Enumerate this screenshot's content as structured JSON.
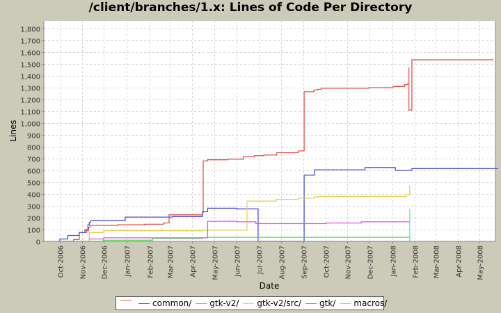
{
  "chart_data": {
    "type": "line",
    "title": "/client/branches/1.x: Lines of Code Per Directory",
    "xlabel": "Date",
    "ylabel": "Lines",
    "ylim": [
      0,
      1850
    ],
    "y_ticks": [
      0,
      100,
      200,
      300,
      400,
      500,
      600,
      700,
      800,
      900,
      1000,
      1100,
      1200,
      1300,
      1400,
      1500,
      1600,
      1700,
      1800
    ],
    "y_tick_labels": [
      "0",
      "100",
      "200",
      "300",
      "400",
      "500",
      "600",
      "700",
      "800",
      "900",
      "1,000",
      "1,100",
      "1,200",
      "1,300",
      "1,400",
      "1,500",
      "1,600",
      "1,700",
      "1,800"
    ],
    "x_tick_labels": [
      "Oct-2006",
      "Nov-2006",
      "Dec-2006",
      "Jan-2007",
      "Feb-2007",
      "Mar-2007",
      "Apr-2007",
      "May-2007",
      "Jun-2007",
      "Jul-2007",
      "Aug-2007",
      "Sep-2007",
      "Oct-2007",
      "Nov-2007",
      "Dec-2007",
      "Jan-2008",
      "Feb-2008",
      "Mar-2008",
      "Apr-2008",
      "May-2008"
    ],
    "grid": true,
    "legend_position": "bottom",
    "step_lines": true,
    "series": [
      {
        "name": "",
        "color": "#e85050",
        "points": [
          [
            "2006-10-05",
            0
          ],
          [
            "2006-10-20",
            15
          ],
          [
            "2006-10-28",
            75
          ],
          [
            "2006-11-07",
            90
          ],
          [
            "2006-11-10",
            120
          ],
          [
            "2006-11-12",
            135
          ],
          [
            "2006-12-20",
            140
          ],
          [
            "2007-01-25",
            145
          ],
          [
            "2007-02-20",
            155
          ],
          [
            "2007-02-28",
            225
          ],
          [
            "2007-04-15",
            245
          ],
          [
            "2007-04-16",
            680
          ],
          [
            "2007-04-22",
            690
          ],
          [
            "2007-05-20",
            695
          ],
          [
            "2007-06-10",
            715
          ],
          [
            "2007-06-25",
            725
          ],
          [
            "2007-07-08",
            730
          ],
          [
            "2007-07-26",
            750
          ],
          [
            "2007-08-25",
            765
          ],
          [
            "2007-09-02",
            1265
          ],
          [
            "2007-09-15",
            1280
          ],
          [
            "2007-09-20",
            1285
          ],
          [
            "2007-09-25",
            1295
          ],
          [
            "2007-11-30",
            1300
          ],
          [
            "2008-01-02",
            1310
          ],
          [
            "2008-01-18",
            1325
          ],
          [
            "2008-01-22",
            1330
          ],
          [
            "2008-01-24",
            1470
          ],
          [
            "2008-01-24",
            1110
          ],
          [
            "2008-01-28",
            1120
          ],
          [
            "2008-01-28",
            1535
          ],
          [
            "2008-05-20",
            1545
          ]
        ]
      },
      {
        "name": "common/",
        "color": "#5050e0",
        "points": [
          [
            "2006-09-29",
            0
          ],
          [
            "2006-10-01",
            20
          ],
          [
            "2006-10-12",
            50
          ],
          [
            "2006-10-28",
            75
          ],
          [
            "2006-11-05",
            100
          ],
          [
            "2006-11-09",
            140
          ],
          [
            "2006-11-11",
            160
          ],
          [
            "2006-11-13",
            175
          ],
          [
            "2006-12-30",
            205
          ],
          [
            "2007-03-05",
            210
          ],
          [
            "2007-04-15",
            250
          ],
          [
            "2007-04-22",
            280
          ],
          [
            "2007-06-01",
            275
          ],
          [
            "2007-06-30",
            0
          ],
          [
            "2007-09-02",
            560
          ],
          [
            "2007-09-16",
            605
          ],
          [
            "2007-11-25",
            625
          ],
          [
            "2008-01-05",
            600
          ],
          [
            "2008-01-28",
            615
          ],
          [
            "2008-05-28",
            615
          ]
        ]
      },
      {
        "name": "gtk-v2/",
        "color": "#50e050",
        "points": [
          [
            "2006-09-29",
            0
          ],
          [
            "2006-11-30",
            10
          ],
          [
            "2007-02-05",
            25
          ],
          [
            "2007-04-15",
            30
          ],
          [
            "2007-04-22",
            35
          ],
          [
            "2008-01-25",
            35
          ]
        ]
      },
      {
        "name": "gtk-v2/src/",
        "color": "#e8d050",
        "points": [
          [
            "2006-11-10",
            0
          ],
          [
            "2006-11-11",
            75
          ],
          [
            "2006-12-01",
            90
          ],
          [
            "2007-04-15",
            95
          ],
          [
            "2007-06-15",
            340
          ],
          [
            "2007-07-25",
            355
          ],
          [
            "2007-08-25",
            365
          ],
          [
            "2007-09-16",
            375
          ],
          [
            "2007-09-20",
            380
          ],
          [
            "2008-01-20",
            395
          ],
          [
            "2008-01-25",
            475
          ]
        ]
      },
      {
        "name": "gtk/",
        "color": "#e850e8",
        "points": [
          [
            "2006-11-10",
            20
          ],
          [
            "2006-12-01",
            30
          ],
          [
            "2007-02-05",
            30
          ],
          [
            "2007-04-22",
            170
          ],
          [
            "2007-06-01",
            165
          ],
          [
            "2007-06-27",
            150
          ],
          [
            "2007-10-02",
            155
          ],
          [
            "2007-11-20",
            165
          ],
          [
            "2008-01-25",
            165
          ]
        ]
      },
      {
        "name": "macros/",
        "color": "#50e8e8",
        "points": [
          [
            "2007-06-30",
            0
          ],
          [
            "2008-01-25",
            0
          ],
          [
            "2008-01-25",
            275
          ]
        ]
      }
    ]
  },
  "legend": {
    "items": [
      {
        "label": "",
        "color": "#e85050"
      },
      {
        "label": "common/",
        "color": "#5050e0"
      },
      {
        "label": "gtk-v2/",
        "color": "#50e050"
      },
      {
        "label": "gtk-v2/src/",
        "color": "#e8d050"
      },
      {
        "label": "gtk/",
        "color": "#e850e8"
      },
      {
        "label": "macros/",
        "color": "#50e8e8"
      }
    ]
  },
  "colors": {
    "background": "#cccbb9",
    "plot_background": "#ffffff",
    "grid": "#d0d0d0"
  }
}
